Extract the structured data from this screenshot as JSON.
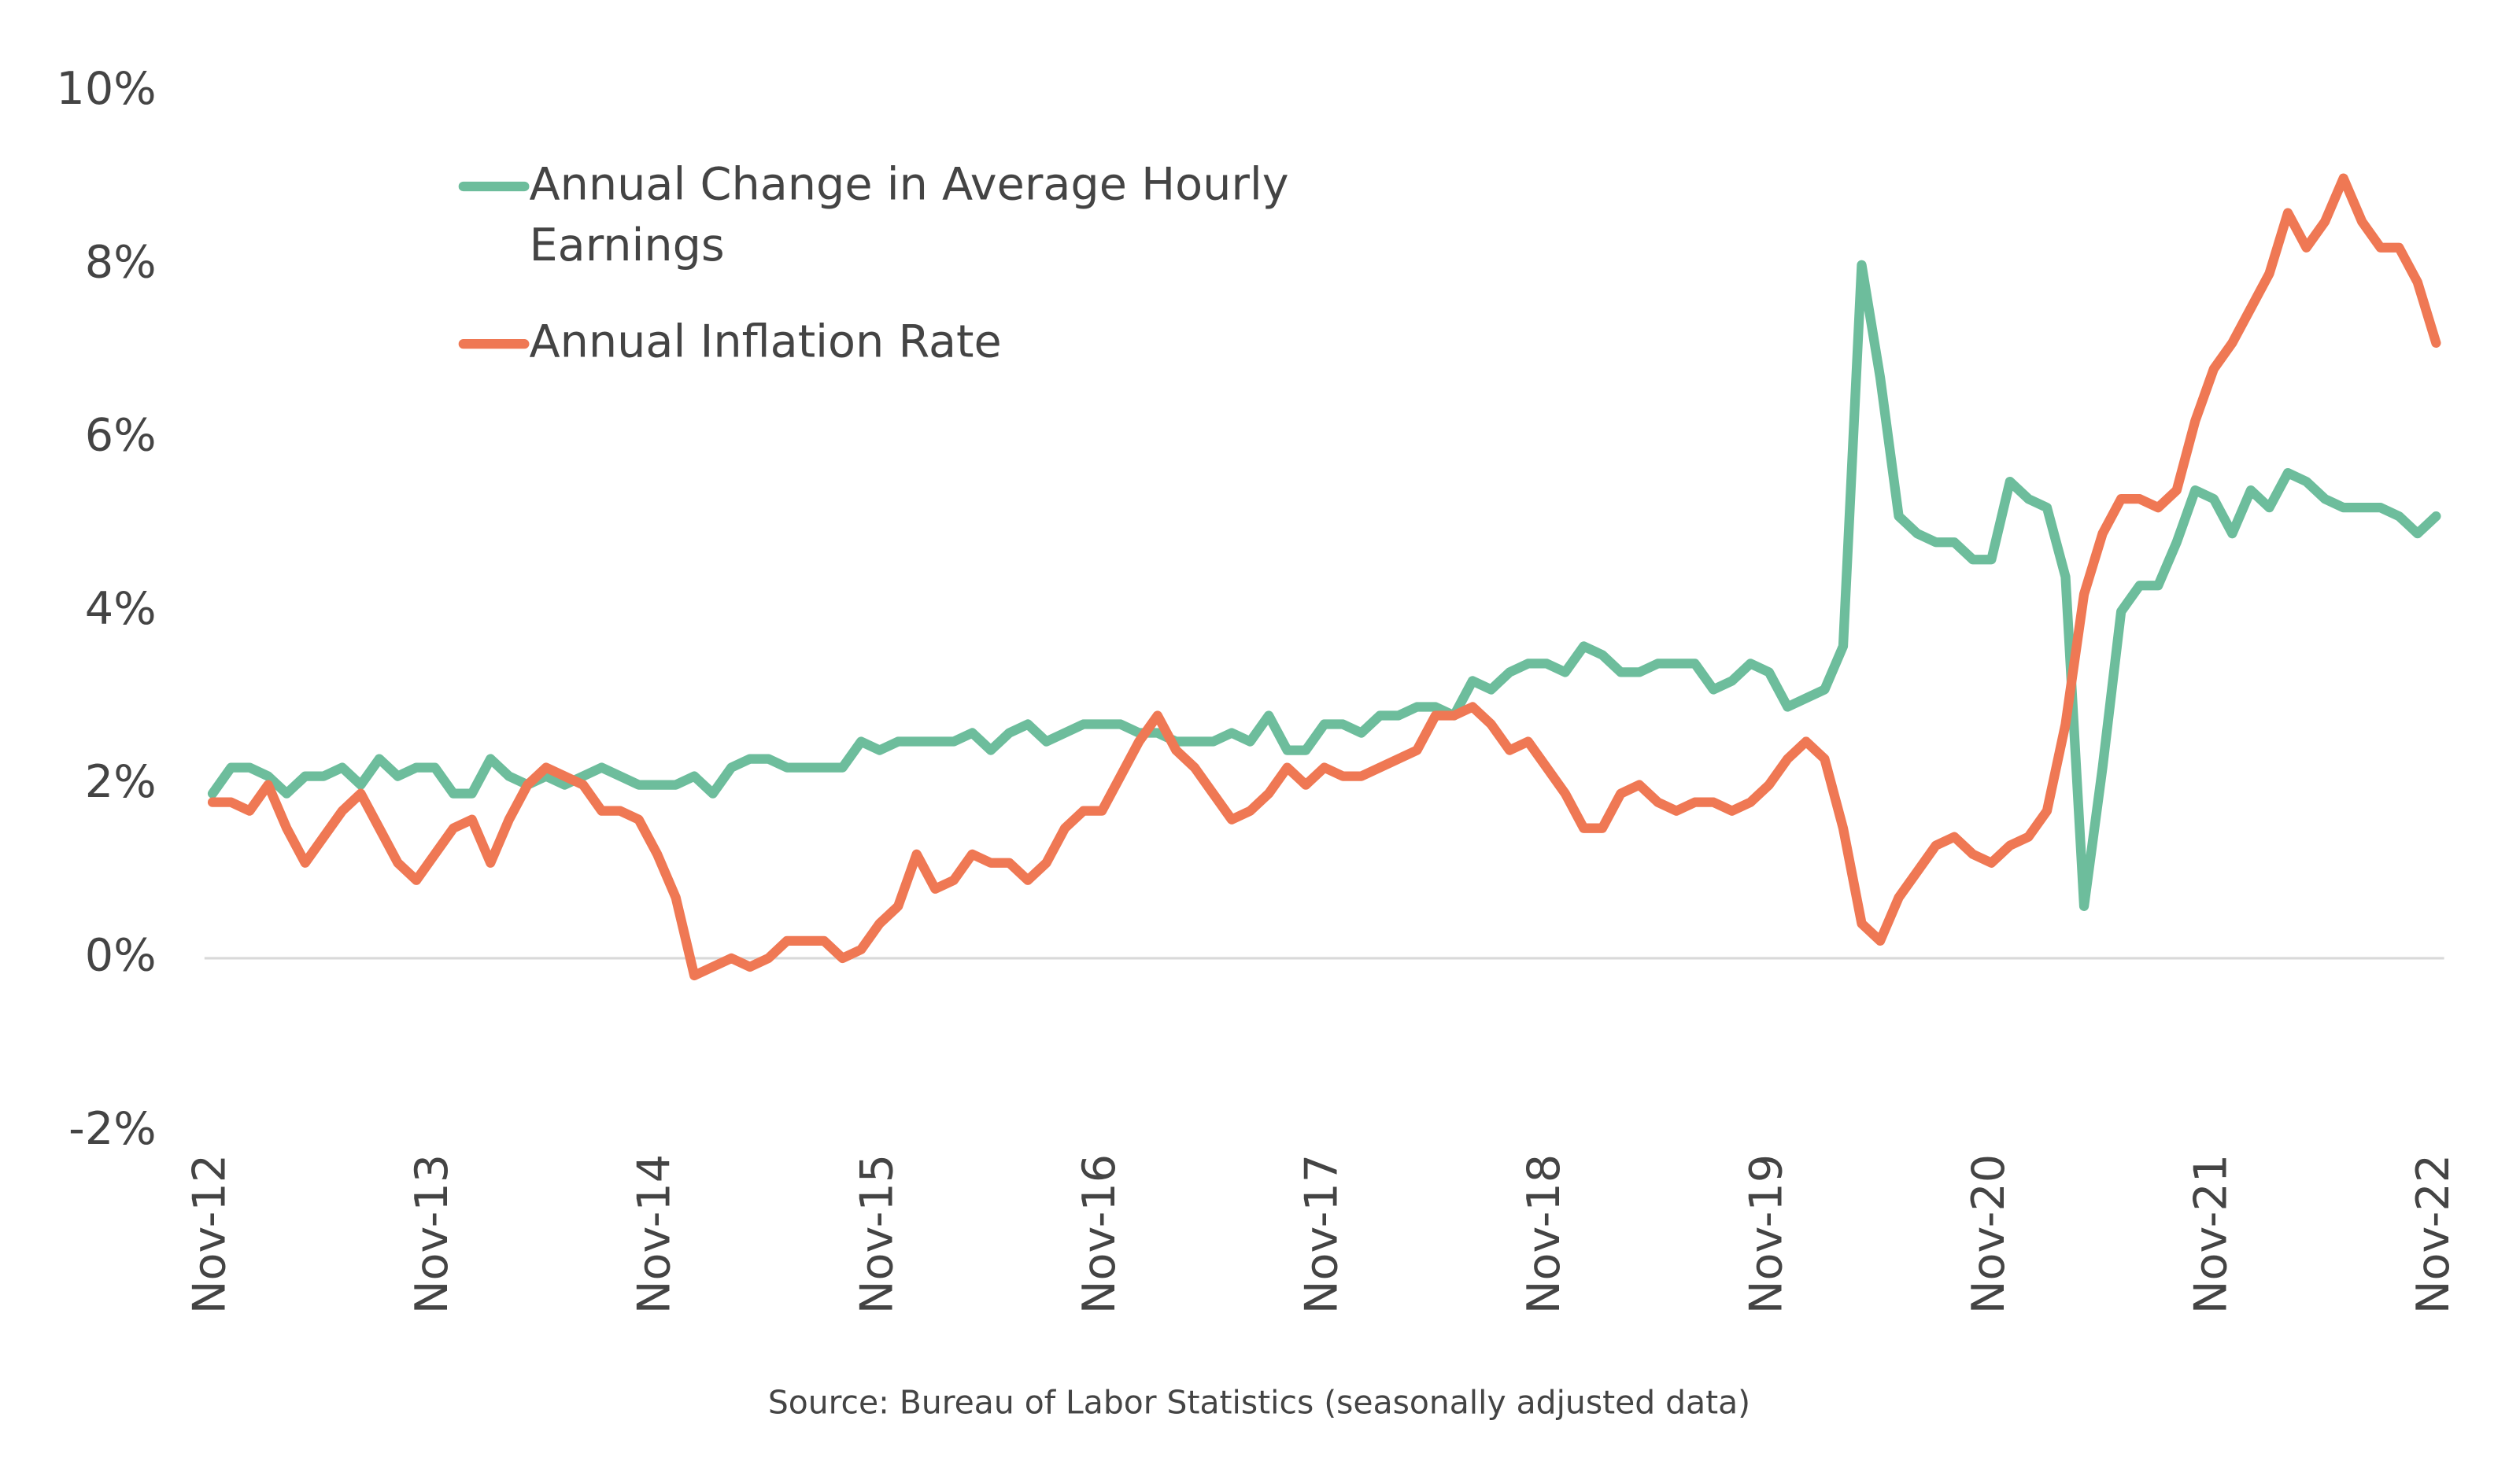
{
  "chart_data": {
    "type": "line",
    "source": "Source: Bureau of Labor Statistics (seasonally adjusted data)",
    "categories": [
      "Nov-12",
      null,
      null,
      null,
      null,
      null,
      null,
      null,
      null,
      null,
      null,
      null,
      "Nov-13",
      null,
      null,
      null,
      null,
      null,
      null,
      null,
      null,
      null,
      null,
      null,
      "Nov-14",
      null,
      null,
      null,
      null,
      null,
      null,
      null,
      null,
      null,
      null,
      null,
      "Nov-15",
      null,
      null,
      null,
      null,
      null,
      null,
      null,
      null,
      null,
      null,
      null,
      "Nov-16",
      null,
      null,
      null,
      null,
      null,
      null,
      null,
      null,
      null,
      null,
      null,
      "Nov-17",
      null,
      null,
      null,
      null,
      null,
      null,
      null,
      null,
      null,
      null,
      null,
      "Nov-18",
      null,
      null,
      null,
      null,
      null,
      null,
      null,
      null,
      null,
      null,
      null,
      "Nov-19",
      null,
      null,
      null,
      null,
      null,
      null,
      null,
      null,
      null,
      null,
      null,
      "Nov-20",
      null,
      null,
      null,
      null,
      null,
      null,
      null,
      null,
      null,
      null,
      null,
      "Nov-21",
      null,
      null,
      null,
      null,
      null,
      null,
      null,
      null,
      null,
      null,
      null,
      "Nov-22"
    ],
    "series": [
      {
        "name": "Annual Change in Average Hourly Earnings",
        "color": "#6dbd9c",
        "values": [
          1.9,
          2.2,
          2.2,
          2.1,
          1.9,
          2.1,
          2.1,
          2.2,
          2.0,
          2.3,
          2.1,
          2.2,
          2.2,
          1.9,
          1.9,
          2.3,
          2.1,
          2.0,
          2.1,
          2.0,
          2.1,
          2.2,
          2.1,
          2.0,
          2.0,
          2.0,
          2.1,
          1.9,
          2.2,
          2.3,
          2.3,
          2.2,
          2.2,
          2.2,
          2.2,
          2.5,
          2.4,
          2.5,
          2.5,
          2.5,
          2.5,
          2.6,
          2.4,
          2.6,
          2.7,
          2.5,
          2.6,
          2.7,
          2.7,
          2.7,
          2.6,
          2.6,
          2.5,
          2.5,
          2.5,
          2.6,
          2.5,
          2.8,
          2.4,
          2.4,
          2.7,
          2.7,
          2.6,
          2.8,
          2.8,
          2.9,
          2.9,
          2.8,
          3.2,
          3.1,
          3.3,
          3.4,
          3.4,
          3.3,
          3.6,
          3.5,
          3.3,
          3.3,
          3.4,
          3.4,
          3.4,
          3.1,
          3.2,
          3.4,
          3.3,
          2.9,
          3.0,
          3.1,
          3.6,
          8.0,
          6.7,
          5.1,
          4.9,
          4.8,
          4.8,
          4.6,
          4.6,
          5.5,
          5.3,
          5.2,
          4.4,
          0.6,
          2.2,
          4.0,
          4.3,
          4.3,
          4.8,
          5.4,
          5.3,
          4.9,
          5.4,
          5.2,
          5.6,
          5.5,
          5.3,
          5.2,
          5.2,
          5.2,
          5.1,
          4.9,
          5.1
        ]
      },
      {
        "name": "Annual Inflation Rate",
        "color": "#ef7854",
        "values": [
          1.8,
          1.8,
          1.7,
          2.0,
          1.5,
          1.1,
          1.4,
          1.7,
          1.9,
          1.5,
          1.1,
          0.9,
          1.2,
          1.5,
          1.6,
          1.1,
          1.6,
          2.0,
          2.2,
          2.1,
          2.0,
          1.7,
          1.7,
          1.6,
          1.2,
          0.7,
          -0.2,
          -0.1,
          0.0,
          -0.1,
          0.0,
          0.2,
          0.2,
          0.2,
          0.0,
          0.1,
          0.4,
          0.6,
          1.2,
          0.8,
          0.9,
          1.2,
          1.1,
          1.1,
          0.9,
          1.1,
          1.5,
          1.7,
          1.7,
          2.1,
          2.5,
          2.8,
          2.4,
          2.2,
          1.9,
          1.6,
          1.7,
          1.9,
          2.2,
          2.0,
          2.2,
          2.1,
          2.1,
          2.2,
          2.3,
          2.4,
          2.8,
          2.8,
          2.9,
          2.7,
          2.4,
          2.5,
          2.2,
          1.9,
          1.5,
          1.5,
          1.9,
          2.0,
          1.8,
          1.7,
          1.8,
          1.8,
          1.7,
          1.8,
          2.0,
          2.3,
          2.5,
          2.3,
          1.5,
          0.4,
          0.2,
          0.7,
          1.0,
          1.3,
          1.4,
          1.2,
          1.1,
          1.3,
          1.4,
          1.7,
          2.7,
          4.2,
          4.9,
          5.3,
          5.3,
          5.2,
          5.4,
          6.2,
          6.8,
          7.1,
          7.5,
          7.9,
          8.6,
          8.2,
          8.5,
          9.0,
          8.5,
          8.2,
          8.2,
          7.8,
          7.1
        ]
      }
    ],
    "ylim": [
      -2,
      10
    ],
    "yticks": [
      {
        "value": -2,
        "label": "-2%"
      },
      {
        "value": 0,
        "label": "0%"
      },
      {
        "value": 2,
        "label": "2%"
      },
      {
        "value": 4,
        "label": "4%"
      },
      {
        "value": 6,
        "label": "6%"
      },
      {
        "value": 8,
        "label": "8%"
      },
      {
        "value": 10,
        "label": "10%"
      }
    ],
    "grid": false,
    "legend": "top-left"
  }
}
